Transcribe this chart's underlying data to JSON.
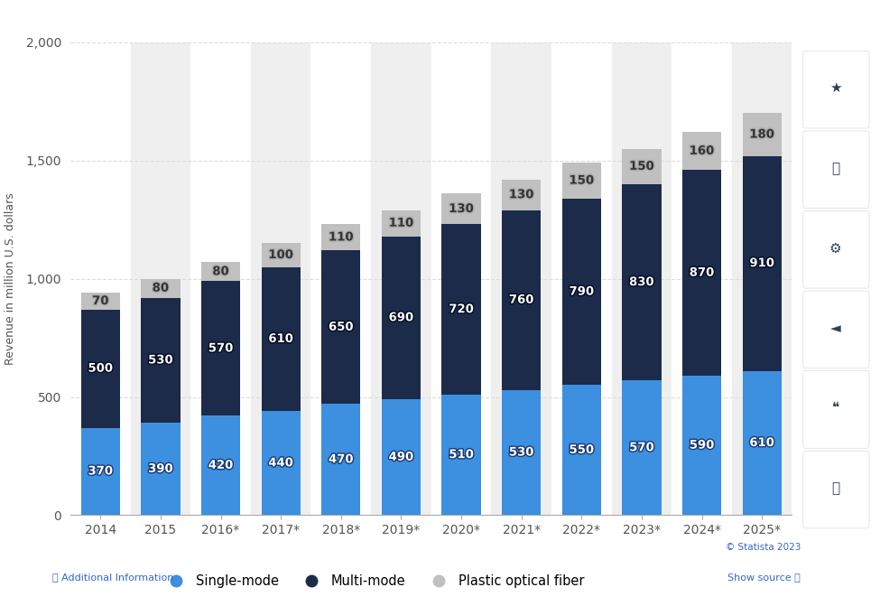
{
  "years": [
    "2014",
    "2015",
    "2016*",
    "2017*",
    "2018*",
    "2019*",
    "2020*",
    "2021*",
    "2022*",
    "2023*",
    "2024*",
    "2025*"
  ],
  "single_mode": [
    370,
    390,
    420,
    440,
    470,
    490,
    510,
    530,
    550,
    570,
    590,
    610
  ],
  "multi_mode": [
    500,
    530,
    570,
    610,
    650,
    690,
    720,
    760,
    790,
    830,
    870,
    910
  ],
  "plastic_fiber": [
    70,
    80,
    80,
    100,
    110,
    110,
    130,
    130,
    150,
    150,
    160,
    180
  ],
  "single_mode_color": "#3d8fe0",
  "multi_mode_color": "#1c2b4a",
  "plastic_fiber_color": "#c0c0c0",
  "ylabel": "Revenue in million U.S. dollars",
  "ylim": [
    0,
    2000
  ],
  "yticks": [
    0,
    500,
    1000,
    1500,
    2000
  ],
  "bg_color": "#ffffff",
  "plot_bg_color": "#ffffff",
  "col_shade_even": "#ffffff",
  "col_shade_odd": "#efefef",
  "grid_color": "#dddddd",
  "label_fontsize": 9.5,
  "tick_fontsize": 10,
  "legend_labels": [
    "Single-mode",
    "Multi-mode",
    "Plastic optical fiber"
  ],
  "statista_text": "© Statista 2023",
  "additional_info": "ⓘ Additional Information",
  "show_source": "Show source ⓘ"
}
